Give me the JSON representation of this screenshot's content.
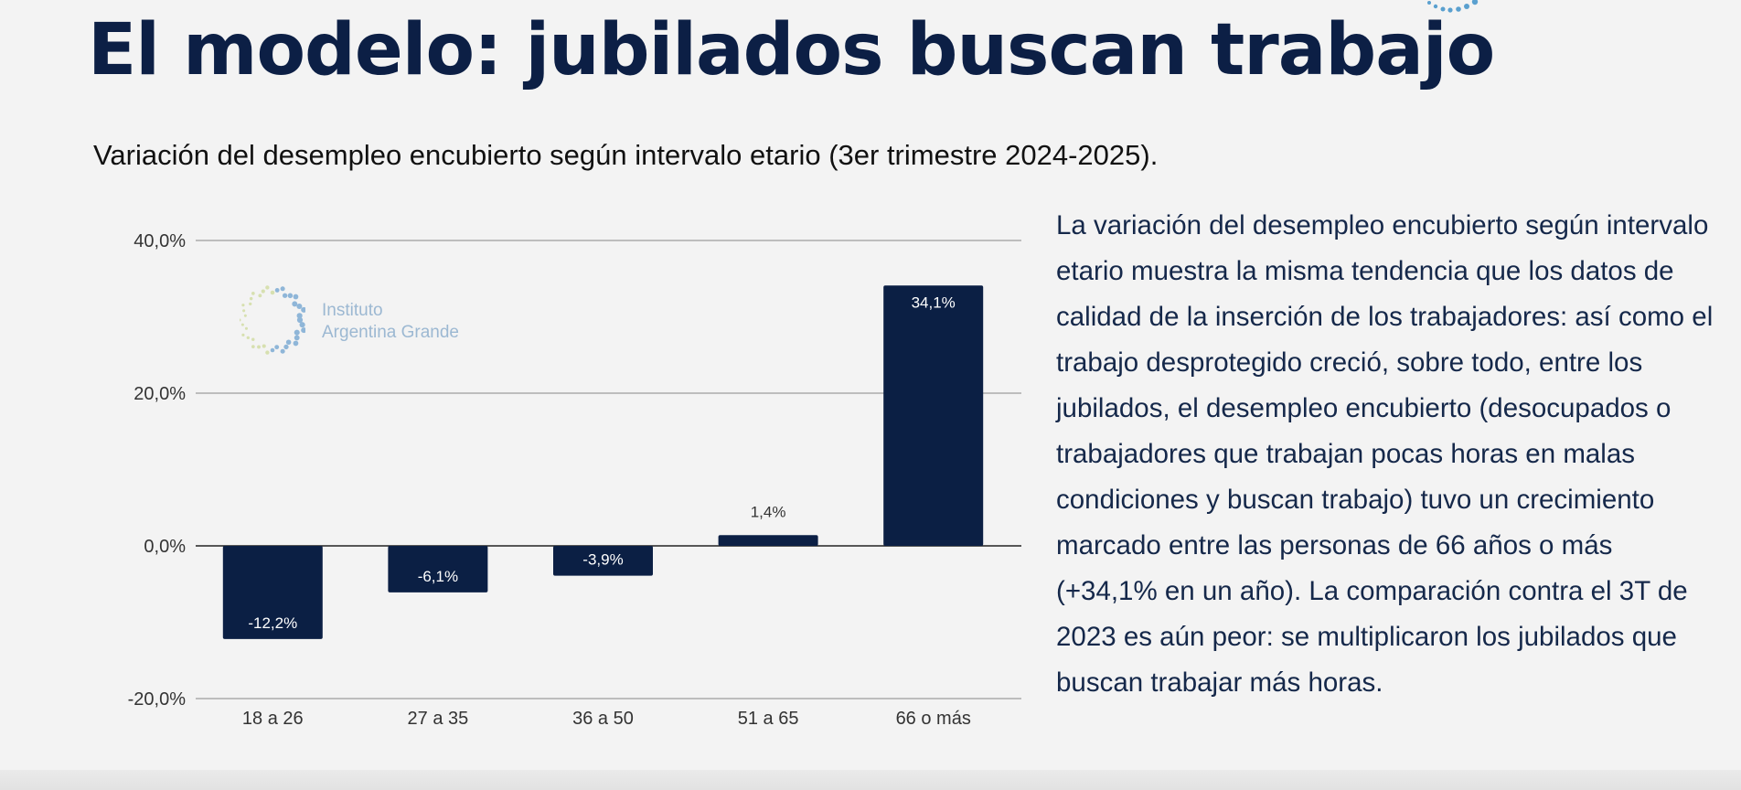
{
  "title": "El modelo: jubilados buscan trabajo",
  "subtitle": "Variación del desempleo encubierto según intervalo etario (3er trimestre 2024-2025).",
  "body_text": "La variación del desempleo encubierto según intervalo etario muestra la misma tendencia que los datos de calidad de la inserción de los trabajadores: así como el trabajo desprotegido creció, sobre todo, entre los jubilados, el desempleo encubierto (desocupados o trabajadores que trabajan pocas horas en malas condiciones y buscan trabajo) tuvo un crecimiento marcado entre las personas de 66 años o más (+34,1% en un año). La comparación contra el 3T de 2023 es aún peor: se multiplicaron los jubilados que buscan trabajar más horas.",
  "watermark": {
    "line1": "Instituto",
    "line2": "Argentina Grande"
  },
  "colors": {
    "bar": "#0b1f44",
    "title": "#0c1f45",
    "grid": "#bdbdbd"
  },
  "chart_data": {
    "type": "bar",
    "categories": [
      "18 a 26",
      "27 a 35",
      "36 a 50",
      "51 a 65",
      "66 o más"
    ],
    "values": [
      -12.2,
      -6.1,
      -3.9,
      1.4,
      34.1
    ],
    "data_labels": [
      "-12,2%",
      "-6,1%",
      "-3,9%",
      "1,4%",
      "34,1%"
    ],
    "ylim": [
      -20,
      40
    ],
    "yticks": [
      -20,
      0,
      20,
      40
    ],
    "ytick_labels": [
      "-20,0%",
      "0,0%",
      "20,0%",
      "40,0%"
    ],
    "grid": true,
    "xlabel": "",
    "ylabel": ""
  }
}
